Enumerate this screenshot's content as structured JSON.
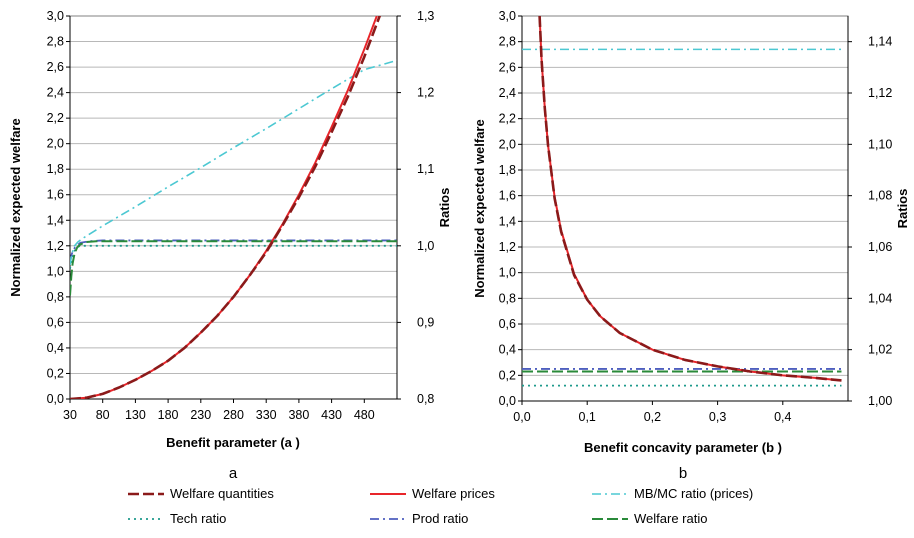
{
  "colors": {
    "welfare_quantities": "#8b1a1a",
    "welfare_prices": "#e8252a",
    "mbmc_ratio": "#4cc8d2",
    "tech_ratio": "#1f9a8c",
    "prod_ratio": "#4e5fbf",
    "welfare_ratio": "#2a8a3a",
    "grid": "#b8b8b8"
  },
  "legend": {
    "entries": [
      {
        "key": "welfare_quantities",
        "label": "Welfare quantities",
        "style": "long-dash"
      },
      {
        "key": "welfare_prices",
        "label": "Welfare prices",
        "style": "solid"
      },
      {
        "key": "mbmc_ratio",
        "label": "MB/MC ratio (prices)",
        "style": "dash-dot"
      },
      {
        "key": "tech_ratio",
        "label": "Tech ratio",
        "style": "dotted"
      },
      {
        "key": "prod_ratio",
        "label": "Prod ratio",
        "style": "dash-dot"
      },
      {
        "key": "welfare_ratio",
        "label": "Welfare ratio",
        "style": "long-dash"
      }
    ]
  },
  "chart_data": [
    {
      "type": "line",
      "panel_label": "a",
      "xlabel": "Benefit parameter (a )",
      "ylabel": "Normalized expected welfare",
      "y2label": "Ratios",
      "xlim": [
        30,
        530
      ],
      "xticks": [
        "30",
        "80",
        "130",
        "180",
        "230",
        "280",
        "330",
        "380",
        "430",
        "480"
      ],
      "xtick_values": [
        30,
        80,
        130,
        180,
        230,
        280,
        330,
        380,
        430,
        480
      ],
      "ylim": [
        0,
        3.0
      ],
      "yticks": [
        "0,0",
        "0,2",
        "0,4",
        "0,6",
        "0,8",
        "1,0",
        "1,2",
        "1,4",
        "1,6",
        "1,8",
        "2,0",
        "2,2",
        "2,4",
        "2,6",
        "2,8",
        "3,0"
      ],
      "y2lim": [
        0.8,
        1.3
      ],
      "y2ticks": [
        "0,8",
        "0,9",
        "1,0",
        "1,1",
        "1,2",
        "1,3"
      ],
      "grid": "horizontal",
      "series": [
        {
          "key": "welfare_quantities",
          "axis": "left",
          "x": [
            30,
            55,
            80,
            105,
            130,
            155,
            180,
            205,
            230,
            255,
            280,
            305,
            330,
            355,
            380,
            405,
            430,
            455,
            480,
            505,
            520
          ],
          "values": [
            0,
            0.01,
            0.04,
            0.09,
            0.15,
            0.22,
            0.3,
            0.4,
            0.52,
            0.65,
            0.8,
            0.97,
            1.15,
            1.36,
            1.58,
            1.82,
            2.09,
            2.37,
            2.68,
            3.02,
            3.22
          ]
        },
        {
          "key": "welfare_prices",
          "axis": "left",
          "x": [
            30,
            55,
            80,
            105,
            130,
            155,
            180,
            205,
            230,
            255,
            280,
            305,
            330,
            355,
            380,
            405,
            430,
            455,
            480,
            505,
            515
          ],
          "values": [
            0,
            0.01,
            0.04,
            0.09,
            0.15,
            0.22,
            0.3,
            0.4,
            0.52,
            0.65,
            0.8,
            0.97,
            1.16,
            1.37,
            1.6,
            1.85,
            2.13,
            2.42,
            2.74,
            3.08,
            3.22
          ]
        },
        {
          "key": "mbmc_ratio",
          "axis": "right",
          "x": [
            30,
            33,
            37,
            42,
            50,
            80,
            130,
            180,
            230,
            280,
            330,
            380,
            430,
            480,
            530
          ],
          "values": [
            0.975,
            0.99,
            1.0,
            1.005,
            1.01,
            1.026,
            1.051,
            1.077,
            1.102,
            1.128,
            1.153,
            1.179,
            1.205,
            1.23,
            1.242
          ]
        },
        {
          "key": "tech_ratio",
          "axis": "right",
          "x": [
            30,
            33,
            36,
            40,
            45,
            60,
            530
          ],
          "values": [
            0.97,
            0.985,
            0.992,
            0.997,
            1.0,
            1.0,
            1.0
          ]
        },
        {
          "key": "prod_ratio",
          "axis": "right",
          "x": [
            30,
            33,
            36,
            40,
            46,
            60,
            80,
            130,
            530
          ],
          "values": [
            0.98,
            0.99,
            0.996,
            1.0,
            1.004,
            1.006,
            1.007,
            1.007,
            1.007
          ]
        },
        {
          "key": "welfare_ratio",
          "axis": "right",
          "x": [
            30,
            32,
            34,
            37,
            41,
            46,
            55,
            70,
            100,
            530
          ],
          "values": [
            0.935,
            0.96,
            0.977,
            0.99,
            0.998,
            1.002,
            1.005,
            1.006,
            1.006,
            1.006
          ]
        }
      ]
    },
    {
      "type": "line",
      "panel_label": "b",
      "xlabel": "Benefit concavity parameter (b )",
      "ylabel": "Normalized expected welfare",
      "y2label": "Ratios",
      "xlim": [
        0,
        0.5
      ],
      "xticks": [
        "0,0",
        "0,1",
        "0,2",
        "0,3",
        "0,4"
      ],
      "xtick_values": [
        0,
        0.1,
        0.2,
        0.3,
        0.4
      ],
      "ylim": [
        0,
        3.0
      ],
      "yticks": [
        "0,0",
        "0,2",
        "0,4",
        "0,6",
        "0,8",
        "1,0",
        "1,2",
        "1,4",
        "1,6",
        "1,8",
        "2,0",
        "2,2",
        "2,4",
        "2,6",
        "2,8",
        "3,0"
      ],
      "y2lim": [
        1.0,
        1.15
      ],
      "y2ticks": [
        "1,00",
        "1,02",
        "1,04",
        "1,06",
        "1,08",
        "1,10",
        "1,12",
        "1,14"
      ],
      "y2tick_values": [
        1.0,
        1.02,
        1.04,
        1.06,
        1.08,
        1.1,
        1.12,
        1.14
      ],
      "grid": "horizontal",
      "series": [
        {
          "key": "welfare_quantities",
          "axis": "left",
          "x": [
            0.027,
            0.03,
            0.035,
            0.04,
            0.05,
            0.06,
            0.08,
            0.1,
            0.12,
            0.15,
            0.2,
            0.25,
            0.3,
            0.35,
            0.4,
            0.45,
            0.49
          ],
          "values": [
            3.0,
            2.66,
            2.28,
            1.99,
            1.58,
            1.32,
            0.98,
            0.79,
            0.66,
            0.53,
            0.4,
            0.32,
            0.27,
            0.23,
            0.2,
            0.18,
            0.16
          ]
        },
        {
          "key": "welfare_prices",
          "axis": "left",
          "x": [
            0.027,
            0.03,
            0.035,
            0.04,
            0.05,
            0.06,
            0.08,
            0.1,
            0.12,
            0.15,
            0.2,
            0.25,
            0.3,
            0.35,
            0.4,
            0.45,
            0.49
          ],
          "values": [
            3.0,
            2.66,
            2.28,
            1.99,
            1.59,
            1.33,
            0.99,
            0.79,
            0.66,
            0.53,
            0.4,
            0.32,
            0.27,
            0.23,
            0.2,
            0.18,
            0.16
          ]
        },
        {
          "key": "mbmc_ratio",
          "axis": "right",
          "x": [
            0.0,
            0.49
          ],
          "values": [
            1.137,
            1.137
          ]
        },
        {
          "key": "tech_ratio",
          "axis": "right",
          "x": [
            0.0,
            0.49
          ],
          "values": [
            1.006,
            1.006
          ]
        },
        {
          "key": "prod_ratio",
          "axis": "right",
          "x": [
            0.0,
            0.49
          ],
          "values": [
            1.0125,
            1.0125
          ]
        },
        {
          "key": "welfare_ratio",
          "axis": "right",
          "x": [
            0.0,
            0.49
          ],
          "values": [
            1.0115,
            1.0115
          ]
        }
      ]
    }
  ]
}
